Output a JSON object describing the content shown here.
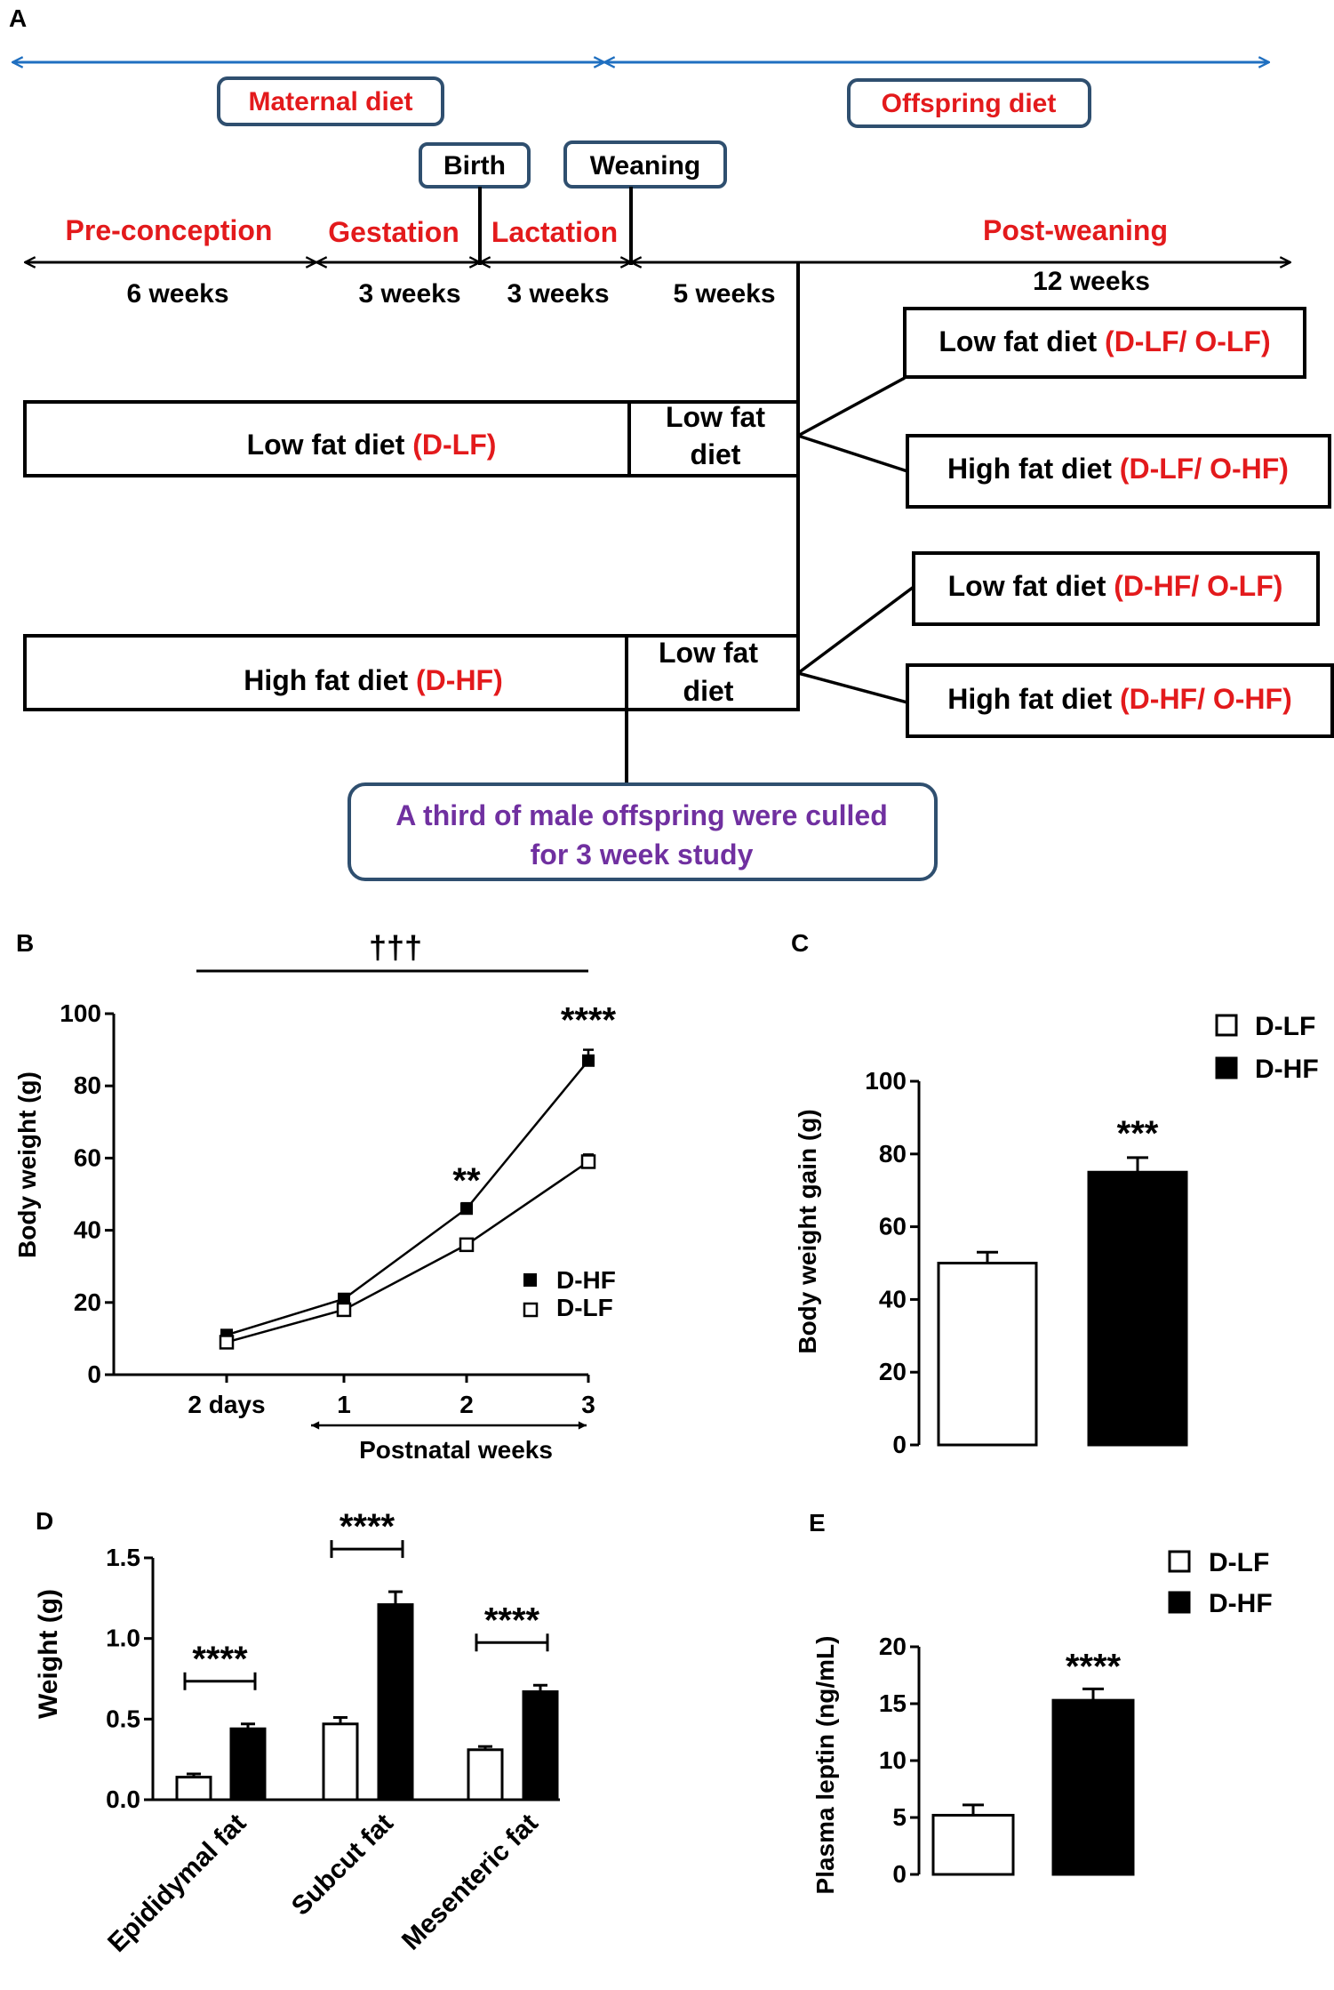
{
  "colors": {
    "blue": "#1f6fc0",
    "red": "#e31a1c",
    "purple": "#7030a0",
    "box_stroke": "#2f4f6f",
    "black": "#000000"
  },
  "panel_a": {
    "label": "A",
    "maternal_diet": "Maternal diet",
    "offspring_diet": "Offspring diet",
    "birth": "Birth",
    "weaning": "Weaning",
    "phase_preconception": "Pre-conception",
    "phase_gestation": "Gestation",
    "phase_lactation": "Lactation",
    "phase_postweaning": "Post-weaning",
    "dur_6w": "6 weeks",
    "dur_3w_a": "3 weeks",
    "dur_3w_b": "3 weeks",
    "dur_5w": "5 weeks",
    "dur_12w": "12 weeks",
    "lf_group_text": "Low fat diet ",
    "lf_group_code": "(D-LF)",
    "hf_group_text": "High fat diet ",
    "hf_group_code": "(D-HF)",
    "lf_wean_1": "Low fat",
    "lf_wean_2": "diet",
    "hf_wean_1": "Low fat",
    "hf_wean_2": "diet",
    "o1_text": "Low fat diet ",
    "o1_code": "(D-LF/ O-LF)",
    "o2_text": "High fat diet ",
    "o2_code": "(D-LF/ O-HF)",
    "o3_text": "Low fat diet ",
    "o3_code": "(D-HF/ O-LF)",
    "o4_text": "High fat diet ",
    "o4_code": "(D-HF/ O-HF)",
    "cull_1": "A third of male offspring were culled",
    "cull_2": "for 3 week study"
  },
  "chart_data": [
    {
      "panel": "B",
      "type": "line",
      "ylabel": "Body weight (g)",
      "xlabel": "Postnatal weeks",
      "categories": [
        "2 days",
        "1",
        "2",
        "3"
      ],
      "ylim": [
        0,
        100
      ],
      "yticks": [
        "0",
        "20",
        "40",
        "60",
        "80",
        "100"
      ],
      "series": [
        {
          "name": "D-HF",
          "values": [
            11,
            21,
            46,
            87
          ],
          "errors": [
            1,
            1,
            1.5,
            3
          ],
          "marker": "filled-square"
        },
        {
          "name": "D-LF",
          "values": [
            9,
            18,
            36,
            59
          ],
          "errors": [
            1,
            1,
            1,
            2
          ],
          "marker": "open-square"
        }
      ],
      "annotations": [
        {
          "text": "**",
          "category": "2"
        },
        {
          "text": "****",
          "category": "3"
        },
        {
          "text": "†††",
          "category": "span"
        }
      ]
    },
    {
      "panel": "C",
      "type": "bar",
      "ylabel": "Body weight gain (g)",
      "categories": [
        "D-LF",
        "D-HF"
      ],
      "values": [
        50,
        75
      ],
      "errors": [
        3,
        4
      ],
      "ylim": [
        0,
        100
      ],
      "yticks": [
        "0",
        "20",
        "40",
        "60",
        "80",
        "100"
      ],
      "legend": [
        "D-LF",
        "D-HF"
      ],
      "annotations": [
        {
          "text": "***",
          "category": "D-HF"
        }
      ]
    },
    {
      "panel": "D",
      "type": "bar",
      "ylabel": "Weight (g)",
      "categories": [
        "Epididymal fat",
        "Subcut fat",
        "Mesenteric fat"
      ],
      "series": [
        {
          "name": "D-LF",
          "values": [
            0.14,
            0.47,
            0.31
          ],
          "errors": [
            0.02,
            0.04,
            0.02
          ]
        },
        {
          "name": "D-HF",
          "values": [
            0.44,
            1.21,
            0.67
          ],
          "errors": [
            0.03,
            0.08,
            0.04
          ]
        }
      ],
      "ylim": [
        0,
        1.5
      ],
      "yticks": [
        "0.0",
        "0.5",
        "1.0",
        "1.5"
      ],
      "annotations": [
        {
          "text": "****",
          "category": "Epididymal fat"
        },
        {
          "text": "****",
          "category": "Subcut fat"
        },
        {
          "text": "****",
          "category": "Mesenteric fat"
        }
      ]
    },
    {
      "panel": "E",
      "type": "bar",
      "ylabel": "Plasma leptin (ng/mL)",
      "categories": [
        "D-LF",
        "D-HF"
      ],
      "values": [
        5.2,
        15.3
      ],
      "errors": [
        0.9,
        1.0
      ],
      "ylim": [
        0,
        20
      ],
      "yticks": [
        "0",
        "5",
        "10",
        "15",
        "20"
      ],
      "legend": [
        "D-LF",
        "D-HF"
      ],
      "annotations": [
        {
          "text": "****",
          "category": "D-HF"
        }
      ]
    }
  ]
}
